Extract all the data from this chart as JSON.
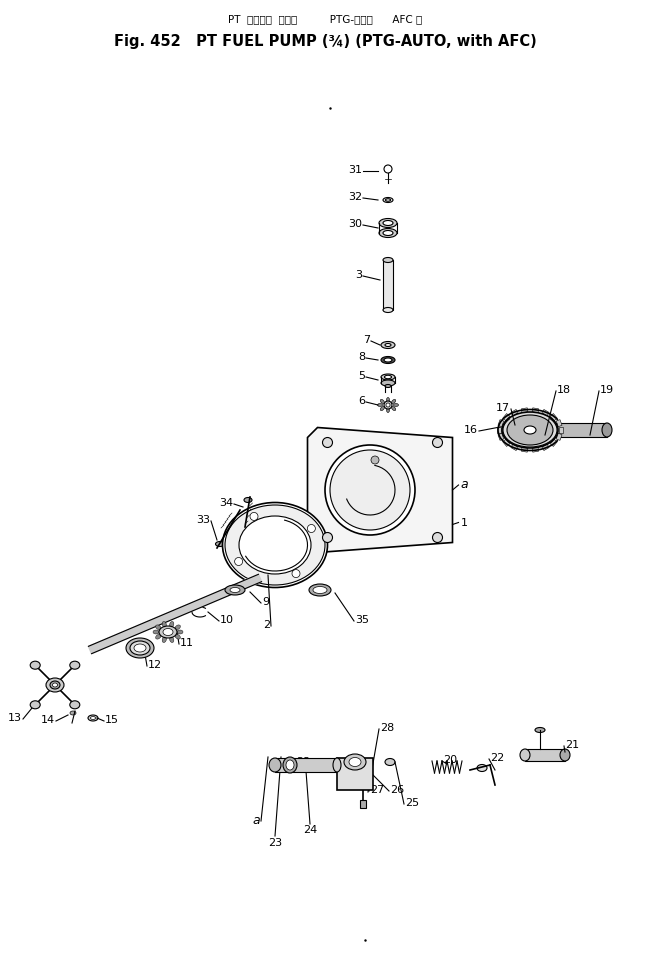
{
  "title_line1": "PT  フェエル  ポンプ          PTG-オート      AFC 付",
  "title_line2": "Fig. 452   PT FUEL PUMP (¾) (PTG-AUTO, with AFC)",
  "bg_color": "#ffffff",
  "lc": "#000000",
  "fig_width": 6.5,
  "fig_height": 9.73,
  "dpi": 100
}
